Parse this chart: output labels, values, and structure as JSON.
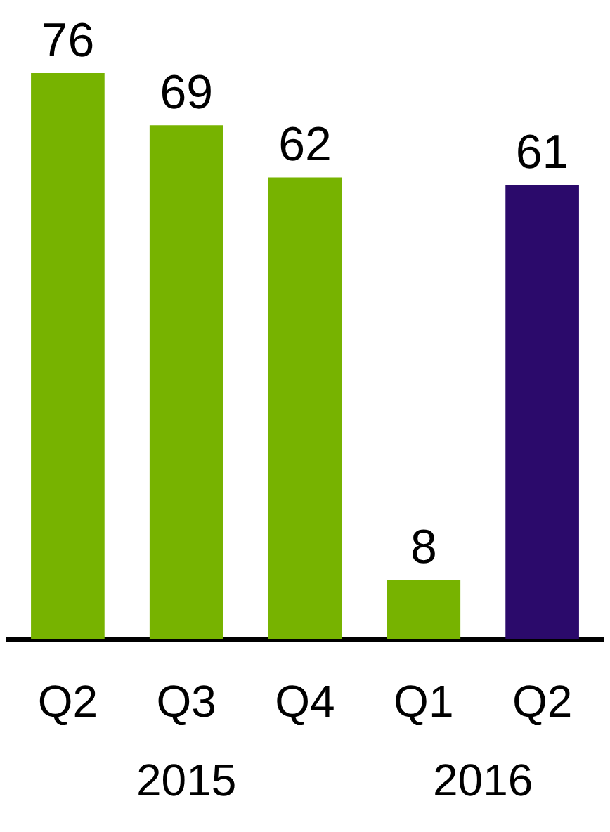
{
  "chart_data": {
    "type": "bar",
    "categories": [
      "Q2",
      "Q3",
      "Q4",
      "Q1",
      "Q2"
    ],
    "values": [
      76,
      69,
      62,
      8,
      61
    ],
    "colors": [
      "#77b300",
      "#77b300",
      "#77b300",
      "#77b300",
      "#2b0a6b"
    ],
    "data_labels": true,
    "annotations": [
      "2015",
      "2016"
    ]
  }
}
